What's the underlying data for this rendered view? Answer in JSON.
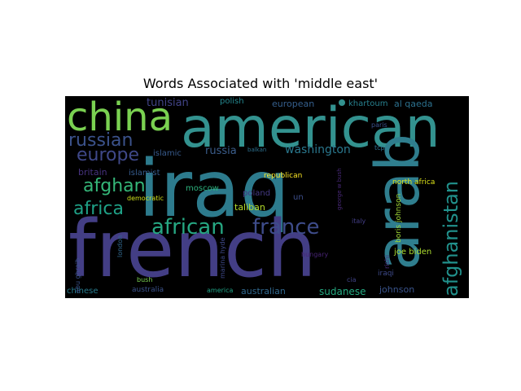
{
  "title": "Words Associated with 'middle east'",
  "words": [
    {
      "text": "iraq",
      "color": "#2d7b8d"
    },
    {
      "text": "french",
      "color": "#433e85"
    },
    {
      "text": "american",
      "color": "#33928f"
    },
    {
      "text": "arab",
      "color": "#2f7e8e"
    },
    {
      "text": "china",
      "color": "#7ad151"
    },
    {
      "text": "afghanistan",
      "color": "#21918c"
    },
    {
      "text": "african",
      "color": "#26a782"
    },
    {
      "text": "france",
      "color": "#3e4c8a"
    },
    {
      "text": "russian",
      "color": "#3b528b"
    },
    {
      "text": "europe",
      "color": "#3f4889"
    },
    {
      "text": "afghan",
      "color": "#35b779"
    },
    {
      "text": "africa",
      "color": "#1fa187"
    },
    {
      "text": "washington",
      "color": "#2a788e"
    },
    {
      "text": "russia",
      "color": "#3b5d8b"
    },
    {
      "text": "tunisian",
      "color": "#414487"
    },
    {
      "text": "sudanese",
      "color": "#25ab82"
    },
    {
      "text": "australian",
      "color": "#31688e"
    },
    {
      "text": "johnson",
      "color": "#3a548c"
    },
    {
      "text": "european",
      "color": "#355f8d"
    },
    {
      "text": "al qaeda",
      "color": "#2c718e"
    },
    {
      "text": "khartoum",
      "color": "#27808e"
    },
    {
      "text": "polish",
      "color": "#24878e"
    },
    {
      "text": "britain",
      "color": "#46327e"
    },
    {
      "text": "islamist",
      "color": "#365c8d"
    },
    {
      "text": "islamic",
      "color": "#375a8c"
    },
    {
      "text": "taliban",
      "color": "#b5de2b"
    },
    {
      "text": "moscow",
      "color": "#2db27d"
    },
    {
      "text": "poland",
      "color": "#443983"
    },
    {
      "text": "un",
      "color": "#3d4e8a"
    },
    {
      "text": "republican",
      "color": "#fde725"
    },
    {
      "text": "democratic",
      "color": "#d0e11c"
    },
    {
      "text": "north africa",
      "color": "#dde318"
    },
    {
      "text": "joe biden",
      "color": "#addc30"
    },
    {
      "text": "boris johnson",
      "color": "#a2da37"
    },
    {
      "text": "chinese",
      "color": "#287c8e"
    },
    {
      "text": "australia",
      "color": "#3b528b"
    },
    {
      "text": "america",
      "color": "#20a386"
    },
    {
      "text": "bush",
      "color": "#7ad151"
    },
    {
      "text": "london",
      "color": "#31688e"
    },
    {
      "text": "abu ghraib",
      "color": "#3b528b"
    },
    {
      "text": "marina hyde",
      "color": "#3e4989"
    },
    {
      "text": "italy",
      "color": "#433e85"
    },
    {
      "text": "hungary",
      "color": "#482475"
    },
    {
      "text": "cia",
      "color": "#404387"
    },
    {
      "text": "iraqi",
      "color": "#3e4a89"
    },
    {
      "text": "rishi",
      "color": "#472c7a"
    },
    {
      "text": "paris",
      "color": "#3b528b"
    },
    {
      "text": "tcp",
      "color": "#2e6e8e"
    },
    {
      "text": "balkan",
      "color": "#2d708e"
    },
    {
      "text": "george w bush",
      "color": "#482878"
    }
  ]
}
